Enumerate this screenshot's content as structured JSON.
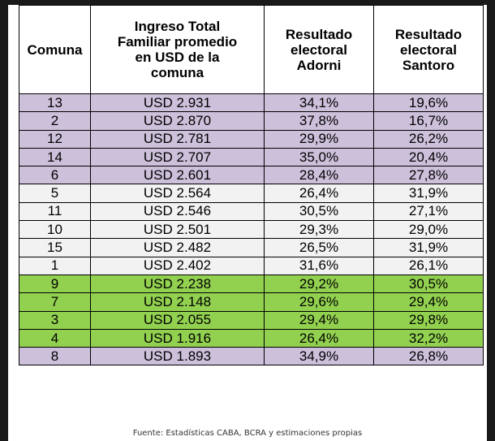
{
  "table": {
    "headers": {
      "comuna": [
        "Comuna"
      ],
      "ingreso": [
        "Ingreso Total",
        "Familiar promedio",
        "en USD de la",
        "comuna"
      ],
      "adorni": [
        "Resultado",
        "electoral",
        "Adorni"
      ],
      "santoro": [
        "Resultado",
        "electoral",
        "Santoro"
      ]
    },
    "rows": [
      {
        "group": "purple",
        "comuna": "13",
        "ingreso": "USD 2.931",
        "adorni": "34,1%",
        "santoro": "19,6%"
      },
      {
        "group": "purple",
        "comuna": "2",
        "ingreso": "USD 2.870",
        "adorni": "37,8%",
        "santoro": "16,7%"
      },
      {
        "group": "purple",
        "comuna": "12",
        "ingreso": "USD 2.781",
        "adorni": "29,9%",
        "santoro": "26,2%"
      },
      {
        "group": "purple",
        "comuna": "14",
        "ingreso": "USD 2.707",
        "adorni": "35,0%",
        "santoro": "20,4%"
      },
      {
        "group": "purple",
        "comuna": "6",
        "ingreso": "USD 2.601",
        "adorni": "28,4%",
        "santoro": "27,8%"
      },
      {
        "group": "gray",
        "comuna": "5",
        "ingreso": "USD 2.564",
        "adorni": "26,4%",
        "santoro": "31,9%"
      },
      {
        "group": "gray",
        "comuna": "11",
        "ingreso": "USD 2.546",
        "adorni": "30,5%",
        "santoro": "27,1%"
      },
      {
        "group": "gray",
        "comuna": "10",
        "ingreso": "USD 2.501",
        "adorni": "29,3%",
        "santoro": "29,0%"
      },
      {
        "group": "gray",
        "comuna": "15",
        "ingreso": "USD 2.482",
        "adorni": "26,5%",
        "santoro": "31,9%"
      },
      {
        "group": "gray",
        "comuna": "1",
        "ingreso": "USD 2.402",
        "adorni": "31,6%",
        "santoro": "26,1%"
      },
      {
        "group": "green",
        "comuna": "9",
        "ingreso": "USD 2.238",
        "adorni": "29,2%",
        "santoro": "30,5%"
      },
      {
        "group": "green",
        "comuna": "7",
        "ingreso": "USD 2.148",
        "adorni": "29,6%",
        "santoro": "29,4%"
      },
      {
        "group": "green",
        "comuna": "3",
        "ingreso": "USD 2.055",
        "adorni": "29,4%",
        "santoro": "29,8%"
      },
      {
        "group": "green",
        "comuna": "4",
        "ingreso": "USD 1.916",
        "adorni": "26,4%",
        "santoro": "32,2%"
      },
      {
        "group": "purple",
        "comuna": "8",
        "ingreso": "USD 1.893",
        "adorni": "34,9%",
        "santoro": "26,8%"
      }
    ]
  },
  "colors": {
    "purple": "#ccc0da",
    "gray": "#f2f2f2",
    "green": "#92d050",
    "background": "#1a1a1a"
  },
  "source": "Fuente: Estadísticas CABA, BCRA y estimaciones propias"
}
